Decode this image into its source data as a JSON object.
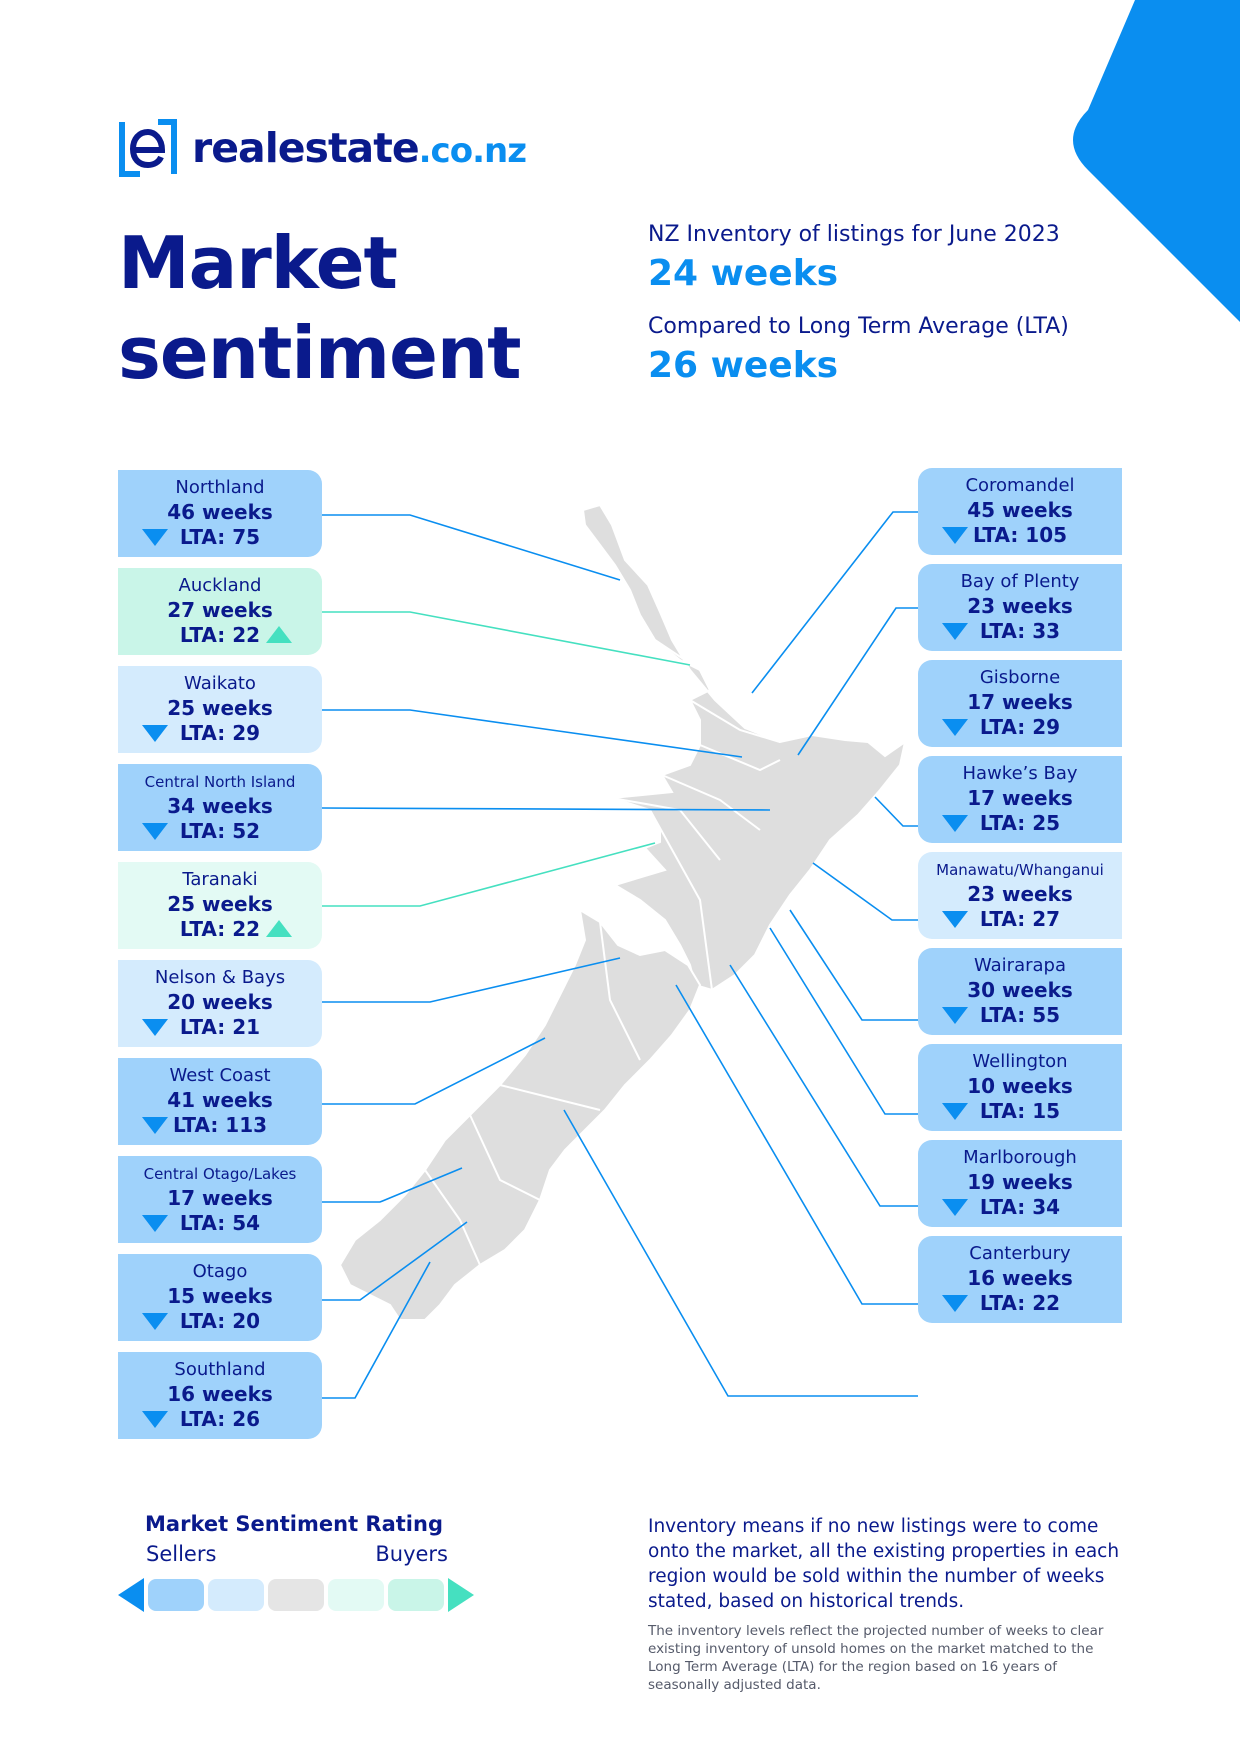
{
  "brand": {
    "name": "realestate",
    "tld": ".co.nz",
    "accent": "#0a8ef0",
    "navy": "#0a1a8c"
  },
  "header": {
    "title_line1": "Market",
    "title_line2": "sentiment",
    "inventory_label": "NZ Inventory of listings for June 2023",
    "inventory_value": "24 weeks",
    "lta_label": "Compared to Long Term Average (LTA)",
    "lta_value": "26 weeks"
  },
  "rating_colors": {
    "strong_sellers": "#9fd2fb",
    "sellers": "#d4ebfd",
    "neutral": "#e5e5e5",
    "buyers": "#e3faf4",
    "strong_buyers": "#c9f5e8"
  },
  "regions_left": [
    {
      "name": "Northland",
      "weeks": "46 weeks",
      "lta": "LTA: 75",
      "trend": "down",
      "rating": "strong_sellers"
    },
    {
      "name": "Auckland",
      "weeks": "27 weeks",
      "lta": "LTA: 22",
      "trend": "up",
      "rating": "strong_buyers"
    },
    {
      "name": "Waikato",
      "weeks": "25 weeks",
      "lta": "LTA: 29",
      "trend": "down",
      "rating": "sellers"
    },
    {
      "name": "Central North Island",
      "weeks": "34 weeks",
      "lta": "LTA: 52",
      "trend": "down",
      "rating": "strong_sellers"
    },
    {
      "name": "Taranaki",
      "weeks": "25 weeks",
      "lta": "LTA: 22",
      "trend": "up",
      "rating": "buyers"
    },
    {
      "name": "Nelson & Bays",
      "weeks": "20 weeks",
      "lta": "LTA: 21",
      "trend": "down",
      "rating": "sellers"
    },
    {
      "name": "West Coast",
      "weeks": "41 weeks",
      "lta": "LTA: 113",
      "trend": "down",
      "rating": "strong_sellers"
    },
    {
      "name": "Central Otago/Lakes",
      "weeks": "17 weeks",
      "lta": "LTA: 54",
      "trend": "down",
      "rating": "strong_sellers"
    },
    {
      "name": "Otago",
      "weeks": "15 weeks",
      "lta": "LTA: 20",
      "trend": "down",
      "rating": "strong_sellers"
    },
    {
      "name": "Southland",
      "weeks": "16 weeks",
      "lta": "LTA: 26",
      "trend": "down",
      "rating": "strong_sellers"
    }
  ],
  "regions_right": [
    {
      "name": "Coromandel",
      "weeks": "45 weeks",
      "lta": "LTA: 105",
      "trend": "down",
      "rating": "strong_sellers"
    },
    {
      "name": "Bay of Plenty",
      "weeks": "23 weeks",
      "lta": "LTA: 33",
      "trend": "down",
      "rating": "strong_sellers"
    },
    {
      "name": "Gisborne",
      "weeks": "17 weeks",
      "lta": "LTA: 29",
      "trend": "down",
      "rating": "strong_sellers"
    },
    {
      "name": "Hawke’s Bay",
      "weeks": "17 weeks",
      "lta": "LTA: 25",
      "trend": "down",
      "rating": "strong_sellers"
    },
    {
      "name": "Manawatu/Whanganui",
      "weeks": "23 weeks",
      "lta": "LTA: 27",
      "trend": "down",
      "rating": "sellers"
    },
    {
      "name": "Wairarapa",
      "weeks": "30 weeks",
      "lta": "LTA: 55",
      "trend": "down",
      "rating": "strong_sellers"
    },
    {
      "name": "Wellington",
      "weeks": "10 weeks",
      "lta": "LTA: 15",
      "trend": "down",
      "rating": "strong_sellers"
    },
    {
      "name": "Marlborough",
      "weeks": "19 weeks",
      "lta": "LTA: 34",
      "trend": "down",
      "rating": "strong_sellers"
    },
    {
      "name": "Canterbury",
      "weeks": "16 weeks",
      "lta": "LTA: 22",
      "trend": "down",
      "rating": "strong_sellers"
    }
  ],
  "legend": {
    "title": "Market Sentiment Rating",
    "left_label": "Sellers",
    "right_label": "Buyers"
  },
  "notes": {
    "main": "Inventory means if no new listings were to come onto the market, all the existing properties in each region would be sold within the number of weeks stated, based on historical trends.",
    "small": "The inventory levels reflect the projected number of weeks to clear existing inventory of unsold homes on the market matched to the Long Term Average (LTA) for the region based on 16 years of seasonally adjusted data."
  }
}
